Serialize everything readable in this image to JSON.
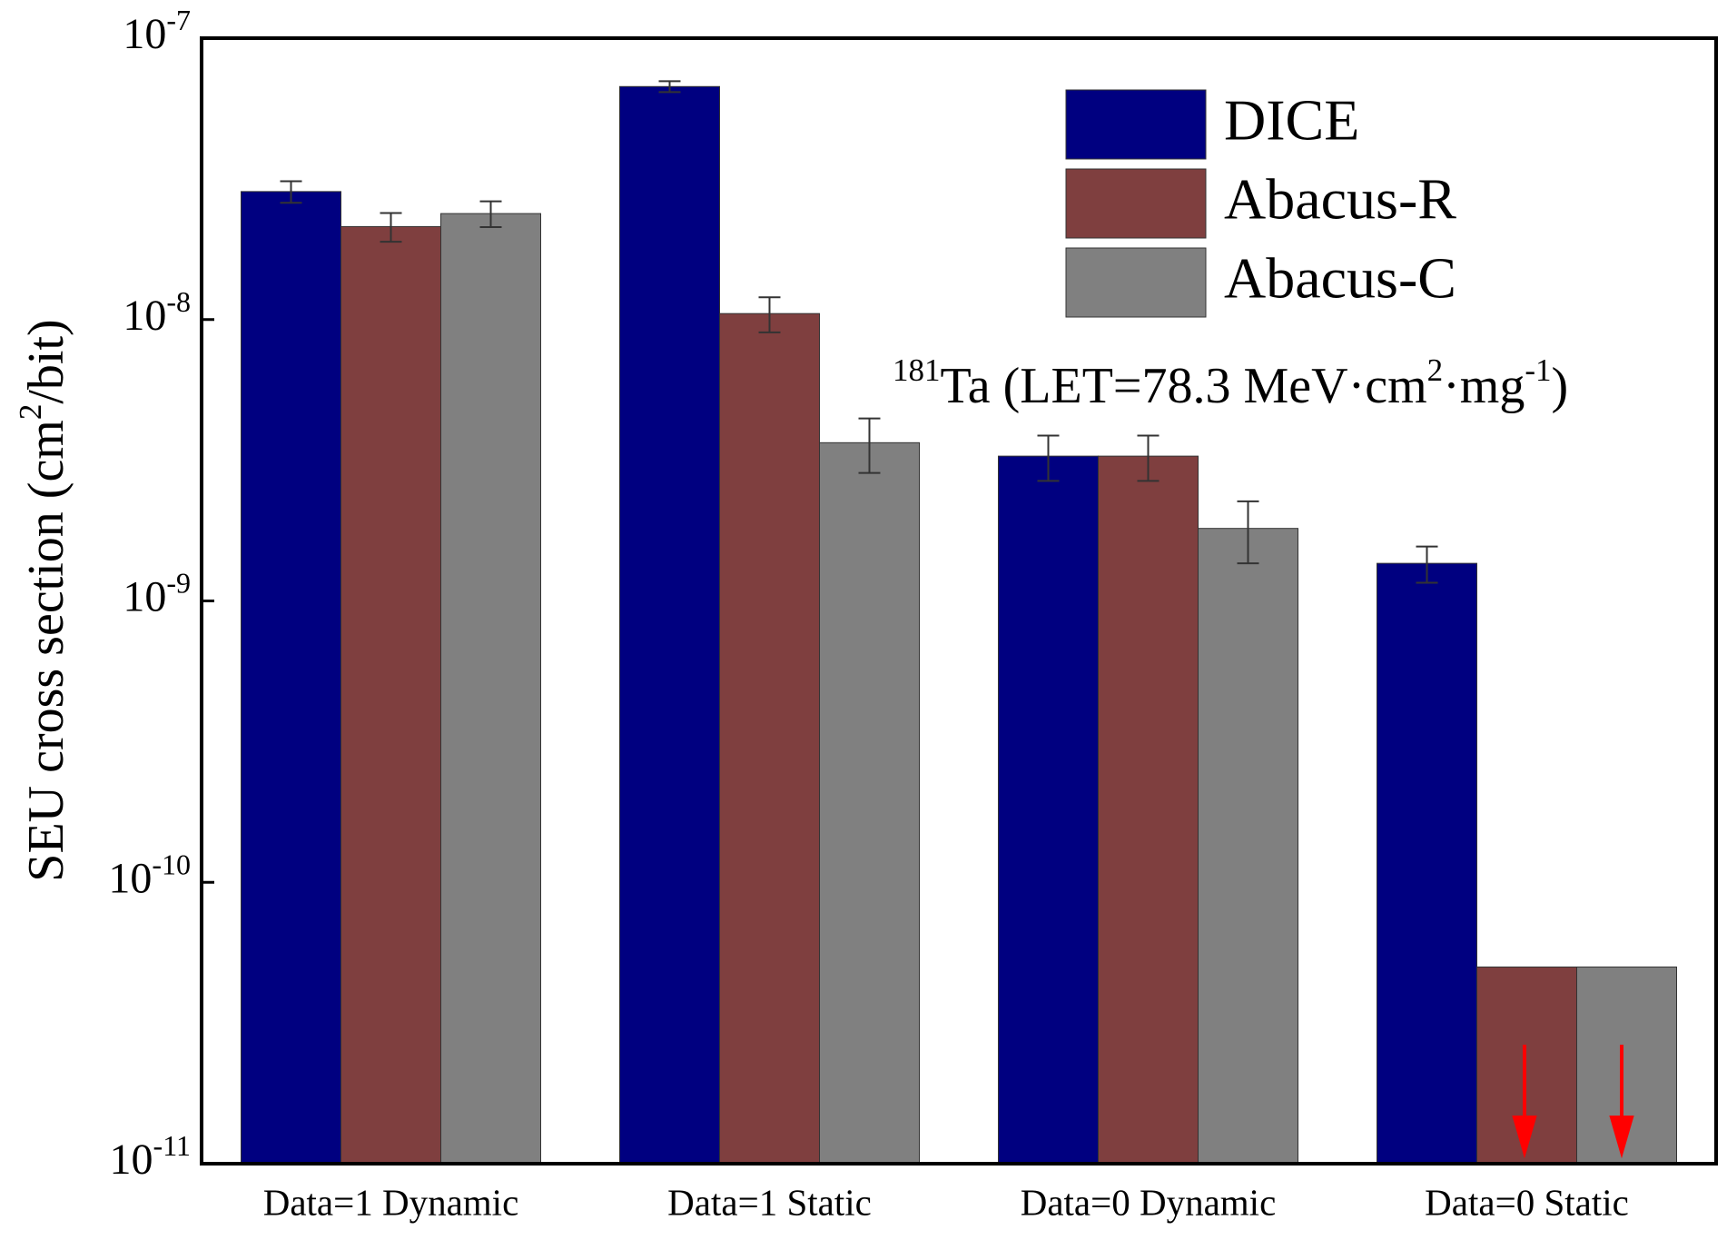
{
  "chart_data": {
    "type": "bar",
    "scale": "log",
    "y_label": [
      "SEU cross section (cm",
      "2",
      "/bit)"
    ],
    "annotation": [
      "181",
      "Ta (LET=78.3 MeV·cm",
      "2",
      "·mg",
      "-1",
      ")"
    ],
    "categories": [
      "Data=1 Dynamic",
      "Data=1 Static",
      "Data=0 Dynamic",
      "Data=0 Static"
    ],
    "series": [
      {
        "name": "DICE",
        "color": "#000080",
        "values": [
          2.85e-08,
          6.73e-08,
          3.27e-09,
          1.36e-09
        ],
        "errors": [
          2.5e-09,
          3e-09,
          6e-10,
          2e-10
        ]
      },
      {
        "name": "Abacus-R",
        "color": "#7f3f3f",
        "values": [
          2.14e-08,
          1.05e-08,
          3.27e-09,
          5e-11
        ],
        "errors": [
          2.5e-09,
          1.5e-09,
          6e-10,
          null
        ]
      },
      {
        "name": "Abacus-C",
        "color": "#808080",
        "values": [
          2.38e-08,
          3.65e-09,
          1.81e-09,
          5e-11
        ],
        "errors": [
          2.5e-09,
          8e-10,
          4.5e-10,
          null
        ]
      }
    ],
    "ylim": [
      1e-11,
      1e-07
    ],
    "yticks": [
      {
        "value": 1e-11,
        "label": "10-11"
      },
      {
        "value": 1e-10,
        "label": "10-10"
      },
      {
        "value": 1e-09,
        "label": "10-9"
      },
      {
        "value": 1e-08,
        "label": "10-8"
      },
      {
        "value": 1e-07,
        "label": "10-7"
      }
    ],
    "legend": "upper-right"
  }
}
